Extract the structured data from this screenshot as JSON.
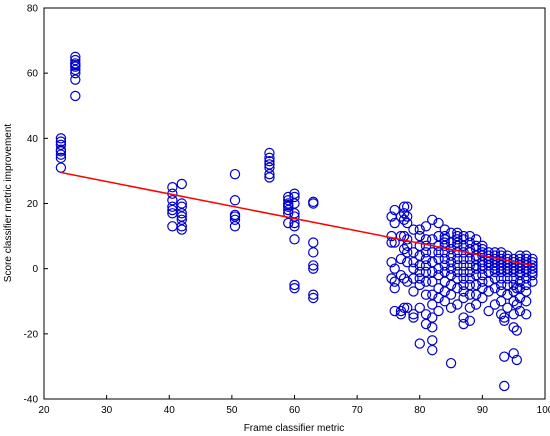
{
  "chart_data": {
    "type": "scatter",
    "title": "",
    "xlabel": "Frame classifier metric",
    "ylabel": "Score classifier metric improvement",
    "xlim": [
      20,
      100
    ],
    "ylim": [
      -40,
      80
    ],
    "xticks": [
      20,
      30,
      40,
      50,
      60,
      70,
      80,
      90,
      100
    ],
    "yticks": [
      -40,
      -20,
      0,
      20,
      40,
      60,
      80
    ],
    "grid": false,
    "legend": "none",
    "colors": {
      "points": "#0000cc",
      "fit": "#ff0000",
      "axes": "#000000"
    },
    "fit_line": {
      "x": [
        22.7,
        98
      ],
      "y": [
        29.5,
        1.0
      ]
    },
    "series": [
      {
        "marker": "open-circle",
        "x": [
          22.7,
          22.7,
          22.7,
          22.7,
          22.7,
          22.7,
          22.7,
          22.7,
          25,
          25,
          25,
          25,
          25,
          25,
          25,
          25,
          25,
          40.5,
          40.5,
          40.5,
          40.5,
          40.5,
          40.5,
          40.5,
          42,
          42,
          42,
          42,
          42,
          42,
          42,
          42,
          50.5,
          50.5,
          50.5,
          50.5,
          50.5,
          50.5,
          56,
          56,
          56,
          56,
          56,
          56,
          56,
          59,
          59,
          59,
          59,
          59,
          59,
          59,
          59,
          60,
          60,
          60,
          60,
          60,
          60,
          60,
          60,
          60,
          60,
          63,
          63,
          63,
          63,
          63,
          63,
          63,
          63,
          75.5,
          75.5,
          75.5,
          75.5,
          75.5,
          76,
          76,
          76,
          76,
          76,
          76,
          76,
          77,
          77,
          77,
          77,
          77,
          77,
          77.5,
          77.5,
          77.5,
          77.5,
          77.5,
          77.5,
          77.5,
          78,
          78,
          78,
          78,
          78,
          78,
          78,
          78,
          78,
          79,
          79,
          79,
          79,
          79,
          79,
          79,
          79,
          80,
          80,
          80,
          80,
          80,
          80,
          80,
          80,
          80,
          80,
          81,
          81,
          81,
          81,
          81,
          81,
          81,
          81,
          81,
          81,
          81,
          82,
          82,
          82,
          82,
          82,
          82,
          82,
          82,
          82,
          82,
          82,
          82,
          83,
          83,
          83,
          83,
          83,
          83,
          83,
          83,
          83,
          83,
          84,
          84,
          84,
          84,
          84,
          84,
          84,
          84,
          84,
          84,
          84,
          84,
          85,
          85,
          85,
          85,
          85,
          85,
          85,
          85,
          85,
          85,
          85,
          86,
          86,
          86,
          86,
          86,
          86,
          86,
          86,
          86,
          86,
          86,
          86,
          87,
          87,
          87,
          87,
          87,
          87,
          87,
          87,
          87,
          87,
          87,
          87,
          87,
          88,
          88,
          88,
          88,
          88,
          88,
          88,
          88,
          88,
          88,
          88,
          88,
          89,
          89,
          89,
          89,
          89,
          89,
          89,
          89,
          89,
          89,
          89,
          90,
          90,
          90,
          90,
          90,
          90,
          90,
          90,
          90,
          90,
          90,
          91,
          91,
          91,
          91,
          91,
          91,
          91,
          91,
          91,
          92,
          92,
          92,
          92,
          92,
          92,
          92,
          92,
          92,
          92,
          93,
          93,
          93,
          93,
          93,
          93,
          93,
          93,
          93,
          93,
          93,
          93,
          93.5,
          93.5,
          93.5,
          93.5,
          94,
          94,
          94,
          94,
          94,
          94,
          94,
          94,
          94,
          94,
          95,
          95,
          95,
          95,
          95,
          95,
          95,
          95,
          95,
          95,
          95,
          95,
          95.5,
          95.5,
          95.5,
          95.5,
          96,
          96,
          96,
          96,
          96,
          96,
          96,
          96,
          96,
          96,
          96,
          97,
          97,
          97,
          97,
          97,
          97,
          97,
          97,
          97,
          97,
          97,
          98,
          98,
          98,
          98,
          98,
          98,
          98
        ],
        "y": [
          31,
          34,
          35,
          36,
          36.5,
          38,
          39,
          40,
          53,
          58,
          60,
          61,
          62,
          62.5,
          63,
          64,
          65,
          13,
          17,
          18,
          19,
          21,
          23,
          25,
          12,
          13,
          15,
          16,
          17,
          19,
          20,
          26,
          13,
          15,
          16,
          16.5,
          21,
          29,
          28,
          29,
          31,
          32,
          33,
          34,
          35.5,
          14,
          17,
          18,
          19,
          19.5,
          20,
          21,
          22,
          -6,
          -5,
          9,
          13,
          14,
          16,
          17,
          20,
          22,
          23,
          -9,
          -8,
          0,
          1,
          5,
          8,
          20,
          20.5,
          -3,
          2,
          8,
          10,
          16,
          -13,
          -6,
          -4,
          0,
          8,
          14,
          18,
          -14,
          -13,
          -2,
          3,
          10,
          16,
          -12,
          -3,
          6,
          10,
          15,
          17,
          19,
          -12,
          -4,
          2,
          5,
          7,
          9,
          14,
          16,
          19,
          -15,
          -14,
          -7,
          -3,
          0,
          2,
          5,
          12,
          -23,
          -12,
          -5,
          -3,
          -1,
          1,
          4,
          7,
          10,
          12,
          -17,
          -14,
          -8,
          -4,
          -1,
          1,
          3,
          5,
          7,
          9,
          13,
          -25,
          -22,
          -18,
          -15,
          -11,
          -8,
          -4,
          -1,
          2,
          5,
          9,
          15,
          -13,
          -9,
          -6,
          -2,
          0,
          3,
          5,
          7,
          10,
          14,
          -10,
          -7,
          -4,
          -1,
          1,
          3,
          5,
          7,
          8,
          9,
          10,
          12,
          -29,
          -12,
          -8,
          -5,
          -2,
          0,
          2,
          4,
          6,
          8,
          11,
          -11,
          -6,
          -3,
          -1,
          1,
          3,
          5,
          7,
          8,
          9,
          10,
          11,
          -17,
          -15,
          -9,
          -7,
          -5,
          -3,
          -1,
          1,
          3,
          5,
          7,
          9,
          10,
          -16,
          -12,
          -8,
          -5,
          -3,
          -1,
          1,
          3,
          5,
          6,
          8,
          10,
          -11,
          -8,
          -5,
          -2,
          0,
          1,
          3,
          4,
          6,
          7,
          9,
          -9,
          -6,
          -4,
          -2,
          0,
          1,
          2,
          4,
          5,
          6,
          7,
          -13,
          -7,
          -4,
          -1,
          1,
          2,
          3,
          4,
          5,
          -11,
          -6,
          -3,
          -1,
          0,
          1,
          2,
          3,
          4,
          5,
          -14,
          -10,
          -7,
          -5,
          -3,
          -1,
          0,
          1,
          2,
          3,
          4,
          5,
          -36,
          -27,
          -16,
          -15,
          -12,
          -8,
          -5,
          -3,
          -1,
          0,
          1,
          2,
          3,
          4,
          -26,
          -18,
          -14,
          -10,
          -7,
          -5,
          -3,
          -1,
          0,
          1,
          2,
          3,
          -28,
          -19,
          -11,
          -6,
          -13,
          -9,
          -6,
          -4,
          -2,
          -1,
          0,
          1,
          2,
          3,
          4,
          -14,
          -10,
          -7,
          -5,
          -3,
          -1,
          0,
          1,
          2,
          3,
          4,
          -4,
          -2,
          -1,
          0,
          1,
          2,
          3
        ]
      }
    ]
  }
}
